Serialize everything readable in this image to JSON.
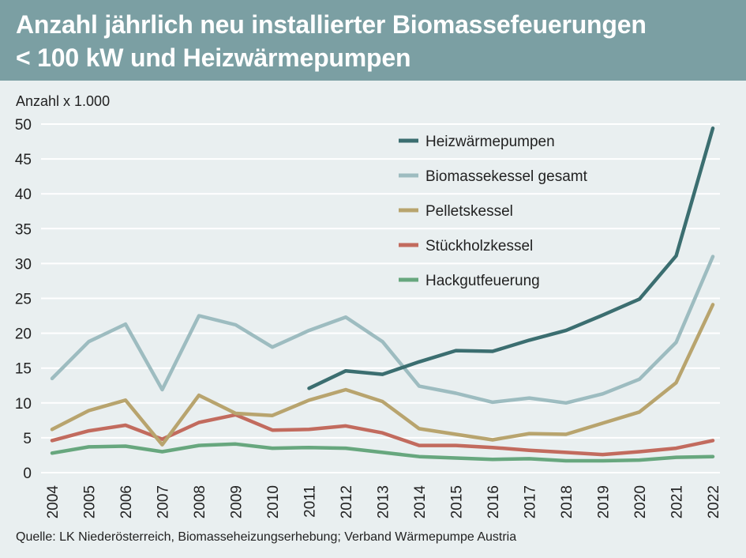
{
  "chart_data": {
    "type": "line",
    "title_lines": [
      "Anzahl jährlich neu installierter Biomassefeuerungen",
      "< 100 kW und Heizwärmepumpen"
    ],
    "ylabel": "Anzahl x 1.000",
    "ylim": [
      0,
      50
    ],
    "yticks": [
      0,
      5,
      10,
      15,
      20,
      25,
      30,
      35,
      40,
      45,
      50
    ],
    "grid": true,
    "legend_position": "top-right",
    "categories": [
      "2004",
      "2005",
      "2006",
      "2007",
      "2008",
      "2009",
      "2010",
      "2011",
      "2012",
      "2013",
      "2014",
      "2015",
      "2016",
      "2017",
      "2018",
      "2019",
      "2020",
      "2021",
      "2022"
    ],
    "series": [
      {
        "name": "Heizwärmepumpen",
        "color": "#3b6e70",
        "values": [
          null,
          null,
          null,
          null,
          null,
          null,
          null,
          12.1,
          14.6,
          14.1,
          15.9,
          17.5,
          17.4,
          19.0,
          20.4,
          22.6,
          24.9,
          31.1,
          49.4
        ]
      },
      {
        "name": "Biomassekessel gesamt",
        "color": "#9dbcc0",
        "values": [
          13.5,
          18.8,
          21.3,
          11.9,
          22.5,
          21.2,
          18.0,
          20.4,
          22.3,
          18.8,
          12.4,
          11.4,
          10.1,
          10.7,
          10.0,
          11.3,
          13.4,
          18.7,
          31.0
        ]
      },
      {
        "name": "Pelletskessel",
        "color": "#b8a46e",
        "values": [
          6.2,
          8.9,
          10.4,
          4.0,
          11.1,
          8.5,
          8.2,
          10.4,
          11.9,
          10.2,
          6.3,
          5.5,
          4.7,
          5.6,
          5.5,
          7.1,
          8.7,
          12.9,
          24.1
        ]
      },
      {
        "name": "Stückholzkessel",
        "color": "#c26b5e",
        "values": [
          4.6,
          6.0,
          6.8,
          4.8,
          7.2,
          8.3,
          6.1,
          6.2,
          6.7,
          5.7,
          3.9,
          3.9,
          3.6,
          3.2,
          2.9,
          2.6,
          3.0,
          3.5,
          4.6
        ]
      },
      {
        "name": "Hackgutfeuerung",
        "color": "#67a77e",
        "values": [
          2.8,
          3.7,
          3.8,
          3.0,
          3.9,
          4.1,
          3.5,
          3.6,
          3.5,
          2.9,
          2.3,
          2.1,
          1.9,
          2.0,
          1.7,
          1.7,
          1.8,
          2.2,
          2.3
        ]
      }
    ]
  },
  "source_text": "Quelle: LK Niederösterreich, Biomasseheizungserhebung; Verband Wärmepumpe Austria"
}
